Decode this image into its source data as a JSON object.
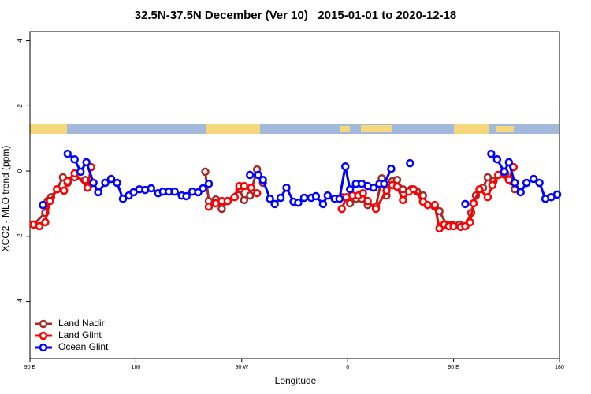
{
  "chart_data": {
    "type": "line",
    "title": "32.5N-37.5N December (Ver 10)   2015-01-01 to 2020-12-18",
    "x_label": "Longitude",
    "y_label": "XCO2 - MLO trend (ppm)",
    "xlim": [
      90,
      540
    ],
    "ylim": [
      -5.75,
      4.28
    ],
    "xticks": [
      {
        "value": 90,
        "label": "90 E"
      },
      180,
      {
        "value": 270,
        "label": "90 W"
      },
      {
        "value": 360,
        "label": "0"
      },
      {
        "value": 450,
        "label": "90 E"
      },
      {
        "value": 540,
        "label": "180"
      }
    ],
    "yticks": [
      -4,
      -2,
      0,
      2,
      4
    ],
    "legend": "bottomleft",
    "series": [
      {
        "name": "Land Nadir",
        "color": "#a52a2a",
        "x": [
          93,
          103,
          105,
          108,
          113,
          118,
          122,
          128,
          137,
          140,
          null,
          239,
          242,
          248,
          253,
          258,
          268,
          272,
          277,
          283,
          288,
          null,
          355,
          362,
          367,
          372,
          377,
          384,
          389,
          393,
          398,
          402,
          407,
          414,
          419,
          424,
          428,
          434,
          438,
          444,
          449,
          455,
          460,
          465,
          469,
          475,
          479,
          484,
          488,
          494,
          499,
          502
        ],
        "values": [
          -1.64,
          -1.28,
          -0.92,
          -0.8,
          -0.56,
          -0.19,
          -0.36,
          -0.19,
          -0.27,
          -0.43,
          null,
          -0.02,
          -0.92,
          -0.87,
          -1.16,
          -0.92,
          -0.56,
          -0.89,
          -0.75,
          0.05,
          -0.36,
          null,
          -0.8,
          -0.99,
          -0.85,
          -0.85,
          -1.04,
          -1.09,
          -0.22,
          -0.75,
          -0.31,
          -0.27,
          -0.56,
          -0.56,
          -0.63,
          -0.75,
          -1.04,
          -1.09,
          -1.23,
          -1.64,
          -1.64,
          -1.64,
          -1.69,
          -1.28,
          -0.75,
          -0.51,
          -0.19,
          -0.31,
          -0.12,
          -0.07,
          -0.31,
          -0.56
        ]
      },
      {
        "name": "Land Glint",
        "color": "#ff0000",
        "x": [
          93,
          98,
          103,
          107,
          113,
          119,
          122,
          128,
          139,
          142,
          null,
          242,
          248,
          253,
          258,
          264,
          268,
          272,
          278,
          283,
          null,
          355,
          359,
          364,
          369,
          373,
          377,
          384,
          393,
          398,
          402,
          407,
          412,
          416,
          424,
          428,
          434,
          438,
          442,
          446,
          450,
          456,
          460,
          464,
          467,
          472,
          479,
          483,
          488,
          497,
          501
        ],
        "values": [
          -1.64,
          -1.69,
          -1.57,
          -0.92,
          -0.56,
          -0.6,
          -0.31,
          -0.07,
          -0.51,
          0.12,
          null,
          -1.09,
          -0.99,
          -0.92,
          -0.92,
          -0.8,
          -0.46,
          -0.46,
          -0.51,
          -0.68,
          null,
          -1.16,
          -0.8,
          -0.75,
          -0.75,
          -0.68,
          -0.92,
          -1.16,
          -0.6,
          -0.43,
          -0.48,
          -0.89,
          -0.63,
          -0.56,
          -0.94,
          -1.04,
          -1.04,
          -1.76,
          -1.64,
          -1.69,
          -1.69,
          -1.71,
          -1.69,
          -1.57,
          -0.99,
          -0.56,
          -0.8,
          -0.43,
          -0.12,
          -0.27,
          0.12
        ]
      },
      {
        "name": "Ocean Glint",
        "color": "#0000ff",
        "x": [
          101,
          null,
          122,
          128,
          133,
          138,
          144,
          148,
          154,
          159,
          164,
          169,
          174,
          178,
          183,
          188,
          193,
          199,
          203,
          208,
          213,
          219,
          223,
          228,
          233,
          237,
          242,
          null,
          277,
          284,
          288,
          294,
          298,
          303,
          308,
          314,
          318,
          323,
          329,
          333,
          339,
          343,
          349,
          353,
          358,
          362,
          367,
          372,
          377,
          382,
          387,
          391,
          397,
          null,
          413,
          null,
          460,
          null,
          482,
          487,
          493,
          497,
          502,
          507,
          512,
          518,
          523,
          528,
          533,
          538
        ],
        "values": [
          -1.04,
          null,
          0.53,
          0.36,
          -0.02,
          0.27,
          -0.36,
          -0.65,
          -0.36,
          -0.24,
          -0.36,
          -0.85,
          -0.75,
          -0.65,
          -0.56,
          -0.58,
          -0.53,
          -0.68,
          -0.63,
          -0.63,
          -0.63,
          -0.75,
          -0.77,
          -0.63,
          -0.65,
          -0.53,
          -0.39,
          null,
          -0.12,
          -0.12,
          -0.27,
          -0.85,
          -1.01,
          -0.82,
          -0.51,
          -0.94,
          -0.97,
          -0.82,
          -0.82,
          -0.77,
          -1.01,
          -0.75,
          -0.85,
          -0.85,
          0.14,
          -0.56,
          -0.39,
          -0.39,
          -0.46,
          -0.51,
          -0.39,
          -0.39,
          0.07,
          null,
          0.24,
          null,
          -1.01,
          null,
          0.53,
          0.36,
          -0.02,
          0.27,
          -0.36,
          -0.65,
          -0.36,
          -0.24,
          -0.36,
          -0.85,
          -0.8,
          -0.72
        ]
      }
    ]
  }
}
